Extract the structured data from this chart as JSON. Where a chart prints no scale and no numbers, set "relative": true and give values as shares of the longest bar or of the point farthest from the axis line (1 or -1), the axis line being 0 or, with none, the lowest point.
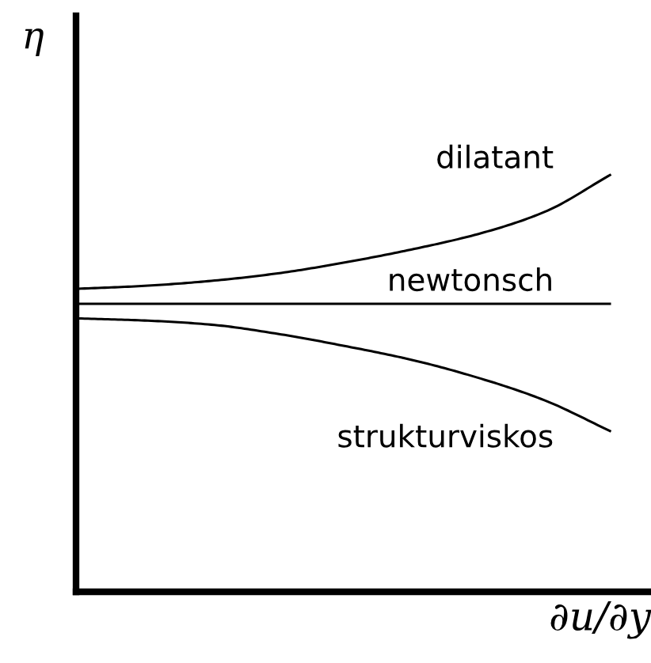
{
  "chart_data": {
    "type": "line",
    "relative": true,
    "xlabel": "∂u/∂y",
    "ylabel": "η",
    "categories": [
      null,
      null,
      null,
      null,
      null,
      null,
      null,
      null,
      null
    ],
    "series": [
      {
        "name": "dilatant",
        "color": "#000000",
        "values": [
          0.726,
          0.733,
          0.745,
          0.763,
          0.789,
          0.82,
          0.857,
          0.91,
          1.0
        ]
      },
      {
        "name": "newtonsch",
        "color": "#000000",
        "values": [
          0.69,
          0.69,
          0.69,
          0.69,
          0.69,
          0.69,
          0.69,
          0.69,
          0.69
        ]
      },
      {
        "name": "strukturviskos",
        "color": "#000000",
        "values": [
          0.655,
          0.65,
          0.64,
          0.618,
          0.589,
          0.556,
          0.513,
          0.459,
          0.384
        ]
      }
    ]
  }
}
